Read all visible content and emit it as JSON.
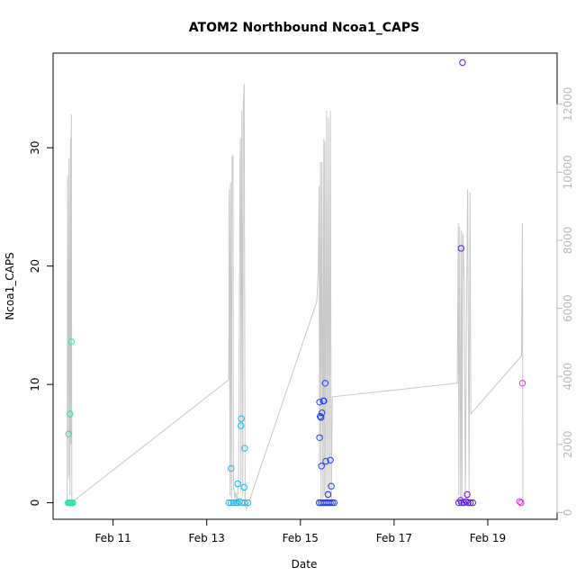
{
  "chart_data": {
    "type": "scatter",
    "title": "ATOM2 Northbound Ncoa1_CAPS",
    "xlabel": "Date",
    "ylabel": "Ncoa1_CAPS",
    "x_unit": "days (February, decimal day-of-month)",
    "xlim": [
      9.72,
      20.48
    ],
    "ylim": [
      -1.4,
      38.0
    ],
    "y2lim": [
      -200,
      13500
    ],
    "x_ticks": [
      {
        "value": 11,
        "label": "Feb 11"
      },
      {
        "value": 13,
        "label": "Feb 13"
      },
      {
        "value": 15,
        "label": "Feb 15"
      },
      {
        "value": 17,
        "label": "Feb 17"
      },
      {
        "value": 19,
        "label": "Feb 19"
      }
    ],
    "y_ticks": [
      0,
      10,
      20,
      30
    ],
    "y2_ticks": [
      0,
      2000,
      4000,
      6000,
      8000,
      10000,
      12000
    ],
    "grid": false,
    "legend": "none",
    "colors": {
      "line": "#c8c8c8",
      "day10": "#22e6a8",
      "day13": "#18b8f0",
      "day15": "#1f3cf0",
      "day18": "#6418e8",
      "day19": "#e030e8"
    },
    "points": [
      {
        "x": 10.05,
        "y": 5.8,
        "c": "day10"
      },
      {
        "x": 10.08,
        "y": 7.5,
        "c": "day10"
      },
      {
        "x": 10.11,
        "y": 13.6,
        "c": "day10"
      },
      {
        "x": 10.04,
        "y": 0.0,
        "c": "day10"
      },
      {
        "x": 10.06,
        "y": 0.0,
        "c": "day10"
      },
      {
        "x": 10.08,
        "y": 0.0,
        "c": "day10"
      },
      {
        "x": 10.1,
        "y": 0.0,
        "c": "day10"
      },
      {
        "x": 10.12,
        "y": 0.0,
        "c": "day10"
      },
      {
        "x": 10.14,
        "y": 0.0,
        "c": "day10"
      },
      {
        "x": 13.52,
        "y": 2.9,
        "c": "day13"
      },
      {
        "x": 13.66,
        "y": 1.6,
        "c": "day13"
      },
      {
        "x": 13.73,
        "y": 6.5,
        "c": "day13"
      },
      {
        "x": 13.74,
        "y": 7.1,
        "c": "day13"
      },
      {
        "x": 13.81,
        "y": 4.6,
        "c": "day13"
      },
      {
        "x": 13.8,
        "y": 1.3,
        "c": "day13"
      },
      {
        "x": 13.47,
        "y": 0.0,
        "c": "day13"
      },
      {
        "x": 13.52,
        "y": 0.0,
        "c": "day13"
      },
      {
        "x": 13.57,
        "y": 0.0,
        "c": "day13"
      },
      {
        "x": 13.62,
        "y": 0.0,
        "c": "day13"
      },
      {
        "x": 13.66,
        "y": 0.0,
        "c": "day13"
      },
      {
        "x": 13.7,
        "y": 0.1,
        "c": "day13"
      },
      {
        "x": 13.75,
        "y": 0.0,
        "c": "day13"
      },
      {
        "x": 13.81,
        "y": 0.0,
        "c": "day13"
      },
      {
        "x": 13.88,
        "y": 0.0,
        "c": "day13"
      },
      {
        "x": 15.41,
        "y": 8.5,
        "c": "day15"
      },
      {
        "x": 15.46,
        "y": 7.6,
        "c": "day15"
      },
      {
        "x": 15.44,
        "y": 7.2,
        "c": "day15"
      },
      {
        "x": 15.42,
        "y": 7.3,
        "c": "day15"
      },
      {
        "x": 15.49,
        "y": 8.6,
        "c": "day15"
      },
      {
        "x": 15.5,
        "y": 8.6,
        "c": "day15"
      },
      {
        "x": 15.53,
        "y": 10.1,
        "c": "day15"
      },
      {
        "x": 15.41,
        "y": 5.5,
        "c": "day15"
      },
      {
        "x": 15.45,
        "y": 3.1,
        "c": "day15"
      },
      {
        "x": 15.54,
        "y": 3.5,
        "c": "day15"
      },
      {
        "x": 15.64,
        "y": 3.6,
        "c": "day15"
      },
      {
        "x": 15.66,
        "y": 1.4,
        "c": "day15"
      },
      {
        "x": 15.59,
        "y": 0.7,
        "c": "day15"
      },
      {
        "x": 15.4,
        "y": 0.0,
        "c": "day15"
      },
      {
        "x": 15.44,
        "y": 0.0,
        "c": "day15"
      },
      {
        "x": 15.48,
        "y": 0.0,
        "c": "day15"
      },
      {
        "x": 15.52,
        "y": 0.0,
        "c": "day15"
      },
      {
        "x": 15.56,
        "y": 0.0,
        "c": "day15"
      },
      {
        "x": 15.6,
        "y": 0.0,
        "c": "day15"
      },
      {
        "x": 15.64,
        "y": 0.0,
        "c": "day15"
      },
      {
        "x": 15.68,
        "y": 0.0,
        "c": "day15"
      },
      {
        "x": 15.72,
        "y": 0.0,
        "c": "day15"
      },
      {
        "x": 18.43,
        "y": 21.5,
        "c": "day18"
      },
      {
        "x": 18.46,
        "y": 37.2,
        "c": "day18"
      },
      {
        "x": 18.56,
        "y": 0.7,
        "c": "day18"
      },
      {
        "x": 18.42,
        "y": 0.2,
        "c": "day18"
      },
      {
        "x": 18.38,
        "y": 0.0,
        "c": "day18"
      },
      {
        "x": 18.44,
        "y": 0.0,
        "c": "day18"
      },
      {
        "x": 18.49,
        "y": 0.0,
        "c": "day18"
      },
      {
        "x": 18.54,
        "y": 0.1,
        "c": "day18"
      },
      {
        "x": 18.58,
        "y": 0.0,
        "c": "day18"
      },
      {
        "x": 18.63,
        "y": 0.0,
        "c": "day18"
      },
      {
        "x": 18.68,
        "y": 0.0,
        "c": "day18"
      },
      {
        "x": 19.68,
        "y": 0.1,
        "c": "day19"
      },
      {
        "x": 19.71,
        "y": 0.0,
        "c": "day19"
      },
      {
        "x": 19.74,
        "y": 10.1,
        "c": "day19"
      }
    ],
    "line_series": [
      [
        10.02,
        200
      ],
      [
        10.03,
        9900
      ],
      [
        10.05,
        1000
      ],
      [
        10.06,
        10400
      ],
      [
        10.08,
        500
      ],
      [
        10.09,
        11000
      ],
      [
        10.1,
        2000
      ],
      [
        10.11,
        11700
      ],
      [
        10.12,
        300
      ],
      [
        13.47,
        3900
      ],
      [
        13.48,
        9500
      ],
      [
        13.5,
        500
      ],
      [
        13.51,
        9700
      ],
      [
        13.53,
        400
      ],
      [
        13.54,
        10400
      ],
      [
        13.56,
        10500
      ],
      [
        13.57,
        800
      ],
      [
        13.6,
        400
      ],
      [
        13.62,
        600
      ],
      [
        13.65,
        300
      ],
      [
        13.68,
        900
      ],
      [
        13.71,
        10200
      ],
      [
        13.72,
        11000
      ],
      [
        13.73,
        600
      ],
      [
        13.75,
        11800
      ],
      [
        13.77,
        500
      ],
      [
        13.78,
        11900
      ],
      [
        13.8,
        12600
      ],
      [
        13.82,
        200
      ],
      [
        13.85,
        100
      ],
      [
        15.35,
        6200
      ],
      [
        15.38,
        7100
      ],
      [
        15.4,
        9600
      ],
      [
        15.41,
        1500
      ],
      [
        15.43,
        10300
      ],
      [
        15.44,
        300
      ],
      [
        15.46,
        10300
      ],
      [
        15.48,
        400
      ],
      [
        15.5,
        11000
      ],
      [
        15.51,
        500
      ],
      [
        15.52,
        10900
      ],
      [
        15.54,
        300
      ],
      [
        15.56,
        11800
      ],
      [
        15.58,
        200
      ],
      [
        15.6,
        11600
      ],
      [
        15.62,
        400
      ],
      [
        15.64,
        11800
      ],
      [
        15.66,
        200
      ],
      [
        15.68,
        3400
      ],
      [
        18.35,
        3800
      ],
      [
        18.37,
        8500
      ],
      [
        18.38,
        500
      ],
      [
        18.4,
        8400
      ],
      [
        18.42,
        300
      ],
      [
        18.44,
        8300
      ],
      [
        18.45,
        200
      ],
      [
        18.47,
        8200
      ],
      [
        18.5,
        6700
      ],
      [
        18.52,
        300
      ],
      [
        18.55,
        6700
      ],
      [
        18.57,
        9500
      ],
      [
        18.6,
        500
      ],
      [
        18.62,
        9400
      ],
      [
        18.64,
        2900
      ],
      [
        19.72,
        4600
      ],
      [
        19.74,
        8500
      ],
      [
        19.75,
        200
      ]
    ]
  }
}
